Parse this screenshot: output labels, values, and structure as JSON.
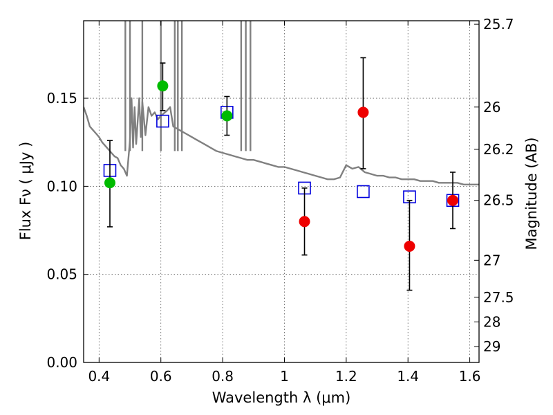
{
  "chart_data": {
    "type": "scatter",
    "xlabel": "Wavelength  λ (μm)",
    "ylabel": "Flux  Fν  ( μJy )",
    "y2label": "Magnitude (AB)",
    "xlim": [
      0.35,
      1.63
    ],
    "ylim": [
      0.0,
      0.194
    ],
    "grid": true,
    "x_ticks": [
      0.4,
      0.6,
      0.8,
      1.0,
      1.2,
      1.4,
      1.6
    ],
    "x_tick_labels": [
      "0.4",
      "0.6",
      "0.8",
      "1",
      "1.2",
      "1.4",
      "1.6"
    ],
    "y_ticks": [
      0.0,
      0.05,
      0.1,
      0.15
    ],
    "y_tick_labels": [
      "0.00",
      "0.05",
      "0.10",
      "0.15"
    ],
    "y2_ticks": [
      {
        "label": "25.7",
        "flux": 0.192
      },
      {
        "label": "26",
        "flux": 0.145
      },
      {
        "label": "26.2",
        "flux": 0.121
      },
      {
        "label": "26.5",
        "flux": 0.092
      },
      {
        "label": "27",
        "flux": 0.058
      },
      {
        "label": "27.5",
        "flux": 0.037
      },
      {
        "label": "28",
        "flux": 0.023
      },
      {
        "label": "29",
        "flux": 0.009
      }
    ],
    "colors": {
      "model": "#808080",
      "green": "#00bb00",
      "red": "#ee0000",
      "square": "#0000dd",
      "errorbar": "#000000"
    },
    "series": [
      {
        "kind": "line",
        "points": [
          [
            0.35,
            0.145
          ],
          [
            0.36,
            0.14
          ],
          [
            0.37,
            0.134
          ],
          [
            0.38,
            0.132
          ],
          [
            0.39,
            0.13
          ],
          [
            0.4,
            0.128
          ],
          [
            0.41,
            0.125
          ],
          [
            0.42,
            0.123
          ],
          [
            0.43,
            0.121
          ],
          [
            0.44,
            0.119
          ],
          [
            0.45,
            0.117
          ],
          [
            0.46,
            0.116
          ],
          [
            0.47,
            0.112
          ],
          [
            0.48,
            0.11
          ],
          [
            0.49,
            0.106
          ],
          [
            0.5,
            0.126
          ],
          [
            0.505,
            0.15
          ],
          [
            0.51,
            0.122
          ],
          [
            0.515,
            0.145
          ],
          [
            0.52,
            0.124
          ],
          [
            0.53,
            0.15
          ],
          [
            0.535,
            0.128
          ],
          [
            0.54,
            0.148
          ],
          [
            0.55,
            0.129
          ],
          [
            0.56,
            0.145
          ],
          [
            0.57,
            0.14
          ],
          [
            0.58,
            0.142
          ],
          [
            0.59,
            0.138
          ],
          [
            0.6,
            0.14
          ],
          [
            0.62,
            0.143
          ],
          [
            0.63,
            0.145
          ],
          [
            0.64,
            0.134
          ],
          [
            0.66,
            0.132
          ],
          [
            0.68,
            0.13
          ],
          [
            0.7,
            0.128
          ],
          [
            0.72,
            0.126
          ],
          [
            0.74,
            0.124
          ],
          [
            0.76,
            0.122
          ],
          [
            0.78,
            0.12
          ],
          [
            0.8,
            0.119
          ],
          [
            0.82,
            0.118
          ],
          [
            0.84,
            0.117
          ],
          [
            0.86,
            0.116
          ],
          [
            0.88,
            0.115
          ],
          [
            0.9,
            0.115
          ],
          [
            0.92,
            0.114
          ],
          [
            0.94,
            0.113
          ],
          [
            0.96,
            0.112
          ],
          [
            0.98,
            0.111
          ],
          [
            1.0,
            0.111
          ],
          [
            1.02,
            0.11
          ],
          [
            1.04,
            0.109
          ],
          [
            1.06,
            0.108
          ],
          [
            1.08,
            0.107
          ],
          [
            1.1,
            0.106
          ],
          [
            1.12,
            0.105
          ],
          [
            1.14,
            0.104
          ],
          [
            1.16,
            0.104
          ],
          [
            1.18,
            0.105
          ],
          [
            1.2,
            0.112
          ],
          [
            1.22,
            0.11
          ],
          [
            1.24,
            0.111
          ],
          [
            1.26,
            0.108
          ],
          [
            1.28,
            0.107
          ],
          [
            1.3,
            0.106
          ],
          [
            1.32,
            0.106
          ],
          [
            1.34,
            0.105
          ],
          [
            1.36,
            0.105
          ],
          [
            1.38,
            0.104
          ],
          [
            1.4,
            0.104
          ],
          [
            1.42,
            0.104
          ],
          [
            1.44,
            0.103
          ],
          [
            1.46,
            0.103
          ],
          [
            1.48,
            0.103
          ],
          [
            1.5,
            0.102
          ],
          [
            1.52,
            0.102
          ],
          [
            1.54,
            0.102
          ],
          [
            1.56,
            0.102
          ],
          [
            1.58,
            0.101
          ],
          [
            1.6,
            0.101
          ],
          [
            1.63,
            0.101
          ]
        ]
      },
      {
        "kind": "spikes",
        "x": [
          0.485,
          0.5,
          0.54,
          0.6,
          0.645,
          0.655,
          0.668,
          0.86,
          0.875,
          0.89
        ]
      },
      {
        "kind": "squares",
        "points": [
          [
            0.435,
            0.109
          ],
          [
            0.606,
            0.137
          ],
          [
            0.814,
            0.142
          ],
          [
            1.065,
            0.099
          ],
          [
            1.255,
            0.097
          ],
          [
            1.405,
            0.094
          ],
          [
            1.545,
            0.092
          ]
        ]
      },
      {
        "kind": "circles",
        "name": "green",
        "points": [
          {
            "x": 0.435,
            "y": 0.102,
            "lo": 0.077,
            "hi": 0.126
          },
          {
            "x": 0.606,
            "y": 0.157,
            "lo": 0.143,
            "hi": 0.17
          },
          {
            "x": 0.814,
            "y": 0.14,
            "lo": 0.129,
            "hi": 0.151
          }
        ]
      },
      {
        "kind": "circles",
        "name": "red",
        "points": [
          {
            "x": 1.065,
            "y": 0.08,
            "lo": 0.061,
            "hi": 0.099
          },
          {
            "x": 1.255,
            "y": 0.142,
            "lo": 0.11,
            "hi": 0.173
          },
          {
            "x": 1.405,
            "y": 0.066,
            "lo": 0.041,
            "hi": 0.092
          },
          {
            "x": 1.545,
            "y": 0.092,
            "lo": 0.076,
            "hi": 0.108
          }
        ]
      }
    ]
  }
}
